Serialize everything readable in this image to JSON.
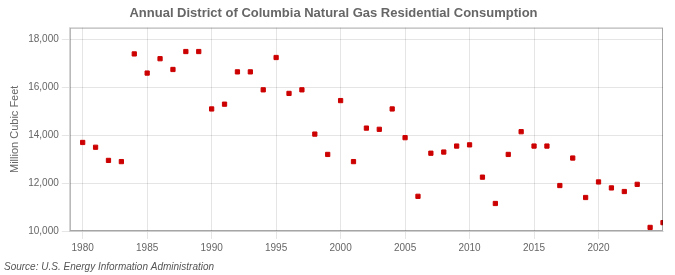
{
  "chart_data": {
    "type": "scatter",
    "title": "Annual District of Columbia Natural Gas Residential Consumption",
    "ylabel": "Million Cubic Feet",
    "source": "Source: U.S. Energy Information Administration",
    "color": "#cc0000",
    "marker": "square",
    "grid": true,
    "x": [
      1980,
      1981,
      1982,
      1983,
      1984,
      1985,
      1986,
      1987,
      1988,
      1989,
      1990,
      1991,
      1992,
      1993,
      1994,
      1995,
      1996,
      1997,
      1998,
      1999,
      2000,
      2001,
      2002,
      2003,
      2004,
      2005,
      2006,
      2007,
      2008,
      2009,
      2010,
      2011,
      2012,
      2013,
      2014,
      2015,
      2016,
      2017,
      2018,
      2019,
      2020,
      2021,
      2022,
      2023,
      2024,
      2025
    ],
    "values": [
      13700,
      13500,
      12950,
      12900,
      17400,
      16600,
      17200,
      16750,
      17500,
      17500,
      15100,
      15300,
      16650,
      16650,
      15900,
      17250,
      15750,
      15900,
      14050,
      13200,
      15450,
      12900,
      14300,
      14250,
      15100,
      13900,
      11450,
      13250,
      13300,
      13550,
      13600,
      12250,
      11150,
      13200,
      14150,
      13550,
      13550,
      11900,
      13050,
      11400,
      12050,
      11800,
      11650,
      11950,
      10150,
      10350
    ],
    "xlim": [
      1979,
      2025
    ],
    "xticks": [
      1980,
      1985,
      1990,
      1995,
      2000,
      2005,
      2010,
      2015,
      2020
    ],
    "ylim": [
      10000,
      18500
    ],
    "yticks": [
      {
        "value": 10000,
        "label": "10,000"
      },
      {
        "value": 12000,
        "label": "12,000"
      },
      {
        "value": 14000,
        "label": "14,000"
      },
      {
        "value": 16000,
        "label": "16,000"
      },
      {
        "value": 18000,
        "label": "18,000"
      }
    ]
  }
}
